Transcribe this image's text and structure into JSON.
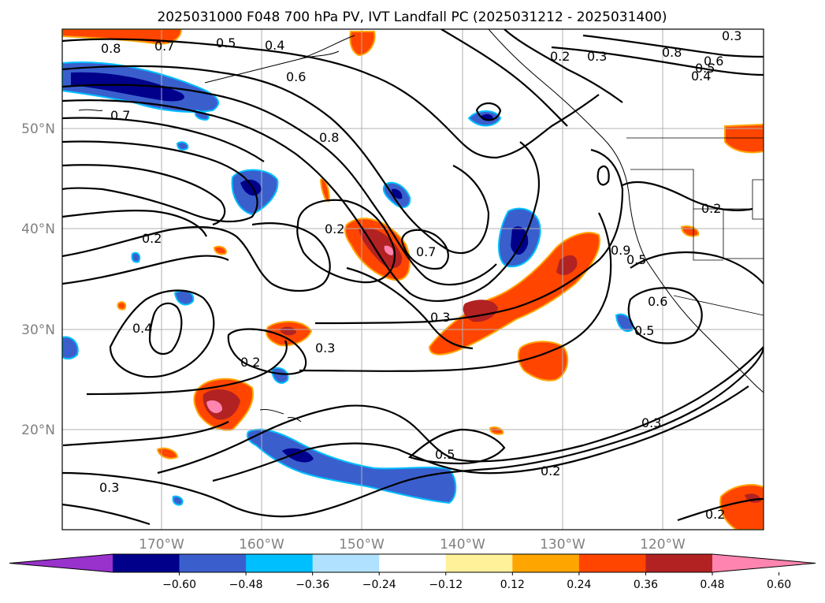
{
  "title": "2025031000 F048 700 hPa PV, IVT Landfall PC (2025031212 - 2025031400)",
  "lat_labels": [
    "50°N",
    "40°N",
    "30°N",
    "20°N"
  ],
  "lon_labels": [
    "170°W",
    "160°W",
    "150°W",
    "140°W",
    "130°W",
    "120°W"
  ],
  "colorbar": {
    "colors": [
      "#9932cc",
      "#00008b",
      "#3a5fcd",
      "#00bfff",
      "#b0e2ff",
      "#ffffff",
      "#fff09a",
      "#ffa500",
      "#ff4500",
      "#b22222",
      "#ff85b0"
    ],
    "tick_labels": [
      "−0.60",
      "−0.48",
      "−0.36",
      "−0.24",
      "−0.12",
      "0.12",
      "0.24",
      "0.36",
      "0.48",
      "0.60"
    ]
  },
  "contour_labels": [
    "0.8",
    "0.7",
    "0.5",
    "0.4",
    "0.6",
    "0.2",
    "0.3",
    "0.8",
    "0.6",
    "0.4",
    "0.5",
    "0.7",
    "0.8",
    "0.2",
    "0.2",
    "0.7",
    "0.4",
    "0.3",
    "0.2",
    "0.3",
    "0.3",
    "0.9",
    "0.5",
    "0.6",
    "0.5",
    "0.2",
    "0.3",
    "0.5",
    "0.2",
    "0.3",
    "0.2"
  ]
}
